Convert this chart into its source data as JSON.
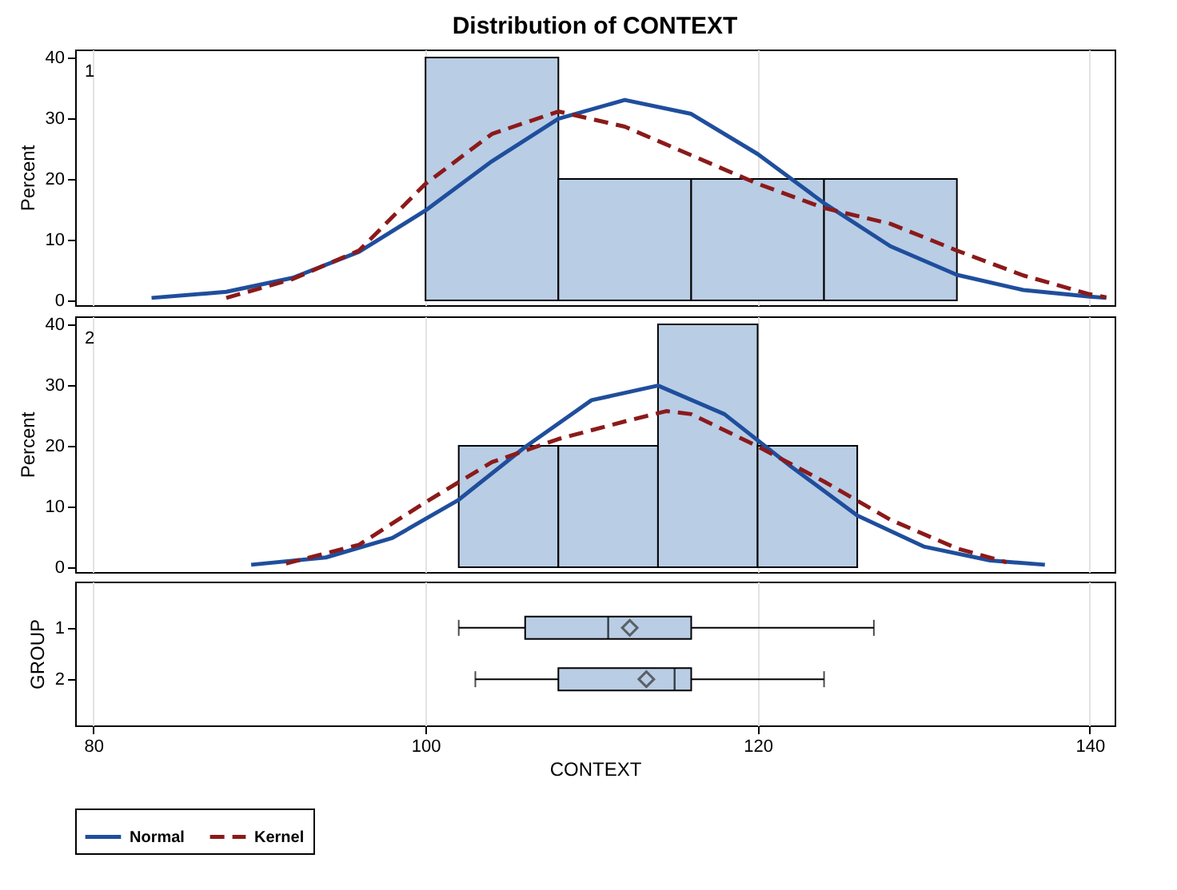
{
  "chart_data": [
    {
      "type": "histogram",
      "title": "Distribution of CONTEXT",
      "ylabel": "Percent",
      "bins": [
        100,
        108,
        116,
        124,
        132
      ],
      "values": [
        40,
        20,
        20,
        20
      ],
      "color": "#b9cde5",
      "xlim": [
        78.9,
        141.5
      ],
      "xticks": [
        80,
        100,
        120,
        140
      ],
      "ylim": [
        -0.8,
        41.3
      ],
      "yticks": [
        0,
        10,
        20,
        30,
        40
      ],
      "grid": "x",
      "tick_labels": "y",
      "annotations": [
        "1"
      ],
      "legend": "bottom",
      "series": [
        {
          "name": "Normal",
          "type": "line",
          "line_style": "solid",
          "color": "#1f4e9c",
          "x": [
            83.5,
            88,
            92,
            96,
            100,
            104,
            108,
            112,
            116,
            120,
            124,
            128,
            132,
            136,
            140,
            141
          ],
          "values": [
            0.4,
            1.4,
            3.7,
            8,
            14.8,
            22.9,
            29.9,
            33,
            30.7,
            24.1,
            16,
            8.9,
            4.2,
            1.7,
            0.6,
            0.4
          ]
        },
        {
          "name": "Kernel",
          "type": "line",
          "line_style": "dashed",
          "color": "#8b1a1a",
          "x": [
            88,
            92,
            96,
            100,
            104,
            108,
            112,
            116,
            120,
            124,
            128,
            132,
            136,
            140,
            141
          ],
          "values": [
            0.4,
            3.5,
            8.2,
            19.2,
            27.4,
            31.1,
            28.6,
            23.9,
            19.2,
            15.2,
            12.6,
            8.2,
            4.1,
            1,
            0.5
          ]
        }
      ]
    },
    {
      "type": "histogram",
      "ylabel": "Percent",
      "bins": [
        102,
        108,
        114,
        120,
        126
      ],
      "values": [
        20,
        20,
        40,
        20
      ],
      "color": "#b9cde5",
      "xlim": [
        78.9,
        141.5
      ],
      "xticks": [
        80,
        100,
        120,
        140
      ],
      "ylim": [
        -0.8,
        41.3
      ],
      "yticks": [
        0,
        10,
        20,
        30,
        40
      ],
      "grid": "x",
      "tick_labels": "y",
      "annotations": [
        "2"
      ],
      "legend": "bottom",
      "series": [
        {
          "name": "Normal",
          "type": "line",
          "line_style": "solid",
          "color": "#1f4e9c",
          "x": [
            89.5,
            94,
            98,
            102,
            106,
            110,
            114,
            118,
            122,
            126,
            130,
            134,
            137.3
          ],
          "values": [
            0.4,
            1.6,
            4.8,
            11.1,
            19.8,
            27.5,
            29.9,
            25.2,
            16.6,
            8.5,
            3.4,
            1.1,
            0.4
          ]
        },
        {
          "name": "Kernel",
          "type": "line",
          "line_style": "dashed",
          "color": "#8b1a1a",
          "x": [
            91.6,
            96,
            100,
            104,
            108,
            112,
            114.5,
            116,
            120,
            124,
            128,
            132,
            135
          ],
          "values": [
            0.6,
            3.7,
            10.7,
            17.3,
            21.1,
            24,
            25.7,
            25.2,
            19.9,
            14.1,
            7.8,
            3.1,
            0.8
          ]
        }
      ]
    },
    {
      "type": "box",
      "orientation": "horizontal",
      "categories": [
        "1",
        "2"
      ],
      "color": "#b9cde5",
      "xlabel": "CONTEXT",
      "ylabel": "GROUP",
      "xlim": [
        78.9,
        141.5
      ],
      "xticks": [
        80,
        100,
        120,
        140
      ],
      "grid": "x",
      "marker": "diamond",
      "boxes": [
        {
          "low": 102,
          "q1": 106,
          "median": 111,
          "q3": 116,
          "high": 127,
          "mean": 112.3
        },
        {
          "low": 103,
          "q1": 108,
          "median": 115,
          "q3": 116,
          "high": 124,
          "mean": 113.3
        }
      ]
    }
  ]
}
